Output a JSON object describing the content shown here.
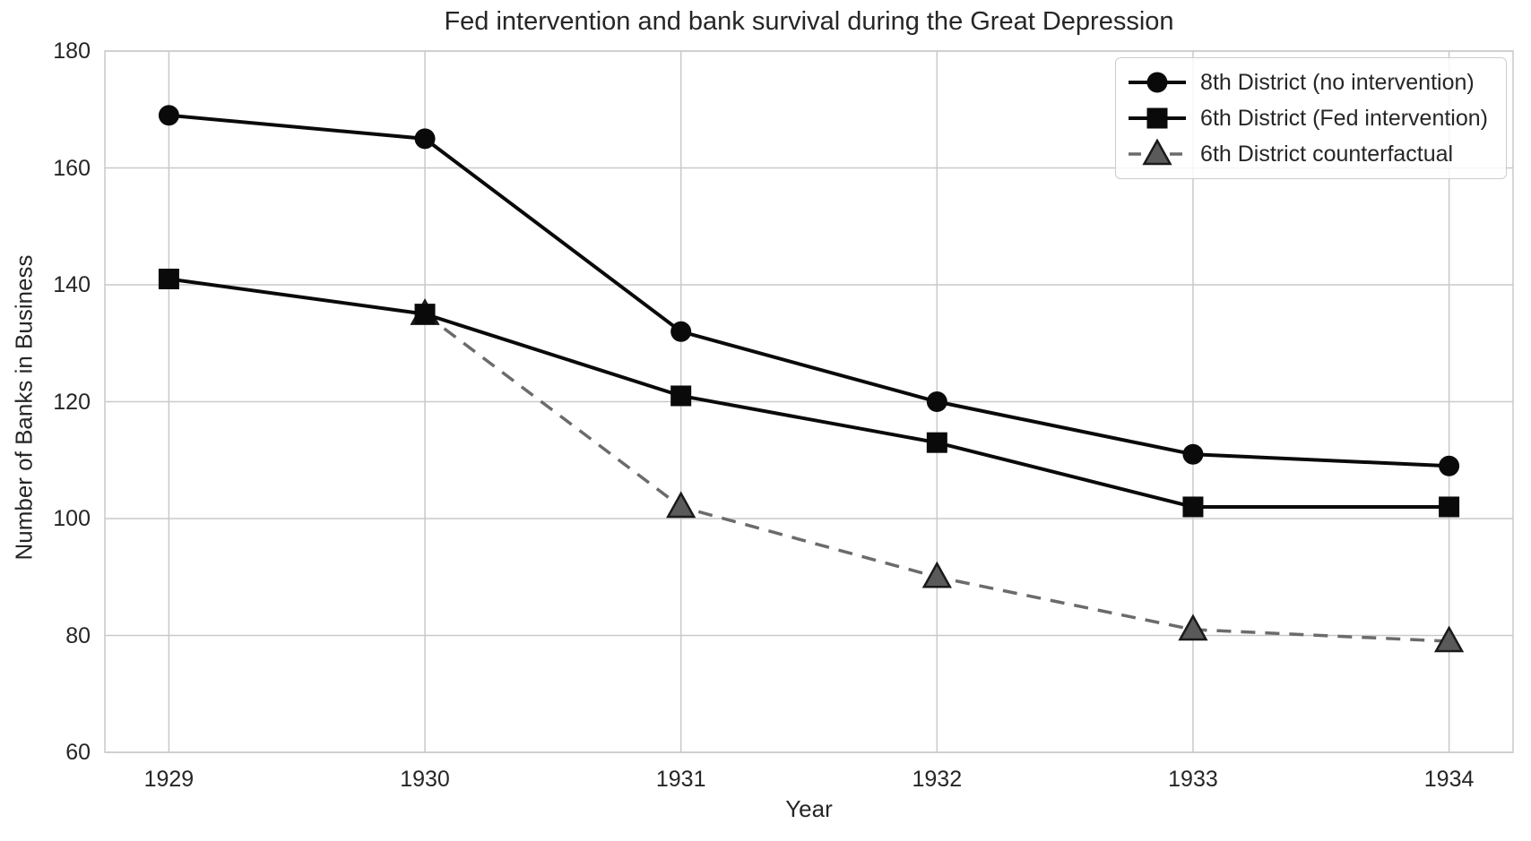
{
  "chart_data": {
    "type": "line",
    "title": "Fed intervention and bank survival during the Great Depression",
    "xlabel": "Year",
    "ylabel": "Number of Banks in Business",
    "xlim": [
      1928.75,
      1934.25
    ],
    "ylim": [
      60,
      180
    ],
    "xticks": [
      1929,
      1930,
      1931,
      1932,
      1933,
      1934
    ],
    "yticks": [
      60,
      80,
      100,
      120,
      140,
      160,
      180
    ],
    "grid": true,
    "legend_position": "upper right",
    "colors": {
      "solid_series": "#0a0a0a",
      "counterfactual_line": "#6b6b6b",
      "counterfactual_marker_fill": "#5a5a5a",
      "counterfactual_marker_edge": "#1a1a1a",
      "grid": "#c9c9c9",
      "text": "#262626",
      "background": "#ffffff"
    },
    "series": [
      {
        "name": "8th District (no intervention)",
        "marker": "circle",
        "line": "solid",
        "color": "#0a0a0a",
        "x": [
          1929,
          1930,
          1931,
          1932,
          1933,
          1934
        ],
        "values": [
          169,
          165,
          132,
          120,
          111,
          109
        ]
      },
      {
        "name": "6th District (Fed intervention)",
        "marker": "square",
        "line": "solid",
        "color": "#0a0a0a",
        "x": [
          1929,
          1930,
          1931,
          1932,
          1933,
          1934
        ],
        "values": [
          141,
          135,
          121,
          113,
          102,
          102
        ]
      },
      {
        "name": "6th District counterfactual",
        "marker": "triangle",
        "line": "dashed",
        "color": "#6b6b6b",
        "marker_fill": "#5a5a5a",
        "marker_edge": "#1a1a1a",
        "x": [
          1930,
          1931,
          1932,
          1933,
          1934
        ],
        "values": [
          135,
          102,
          90,
          81,
          79
        ]
      }
    ]
  }
}
